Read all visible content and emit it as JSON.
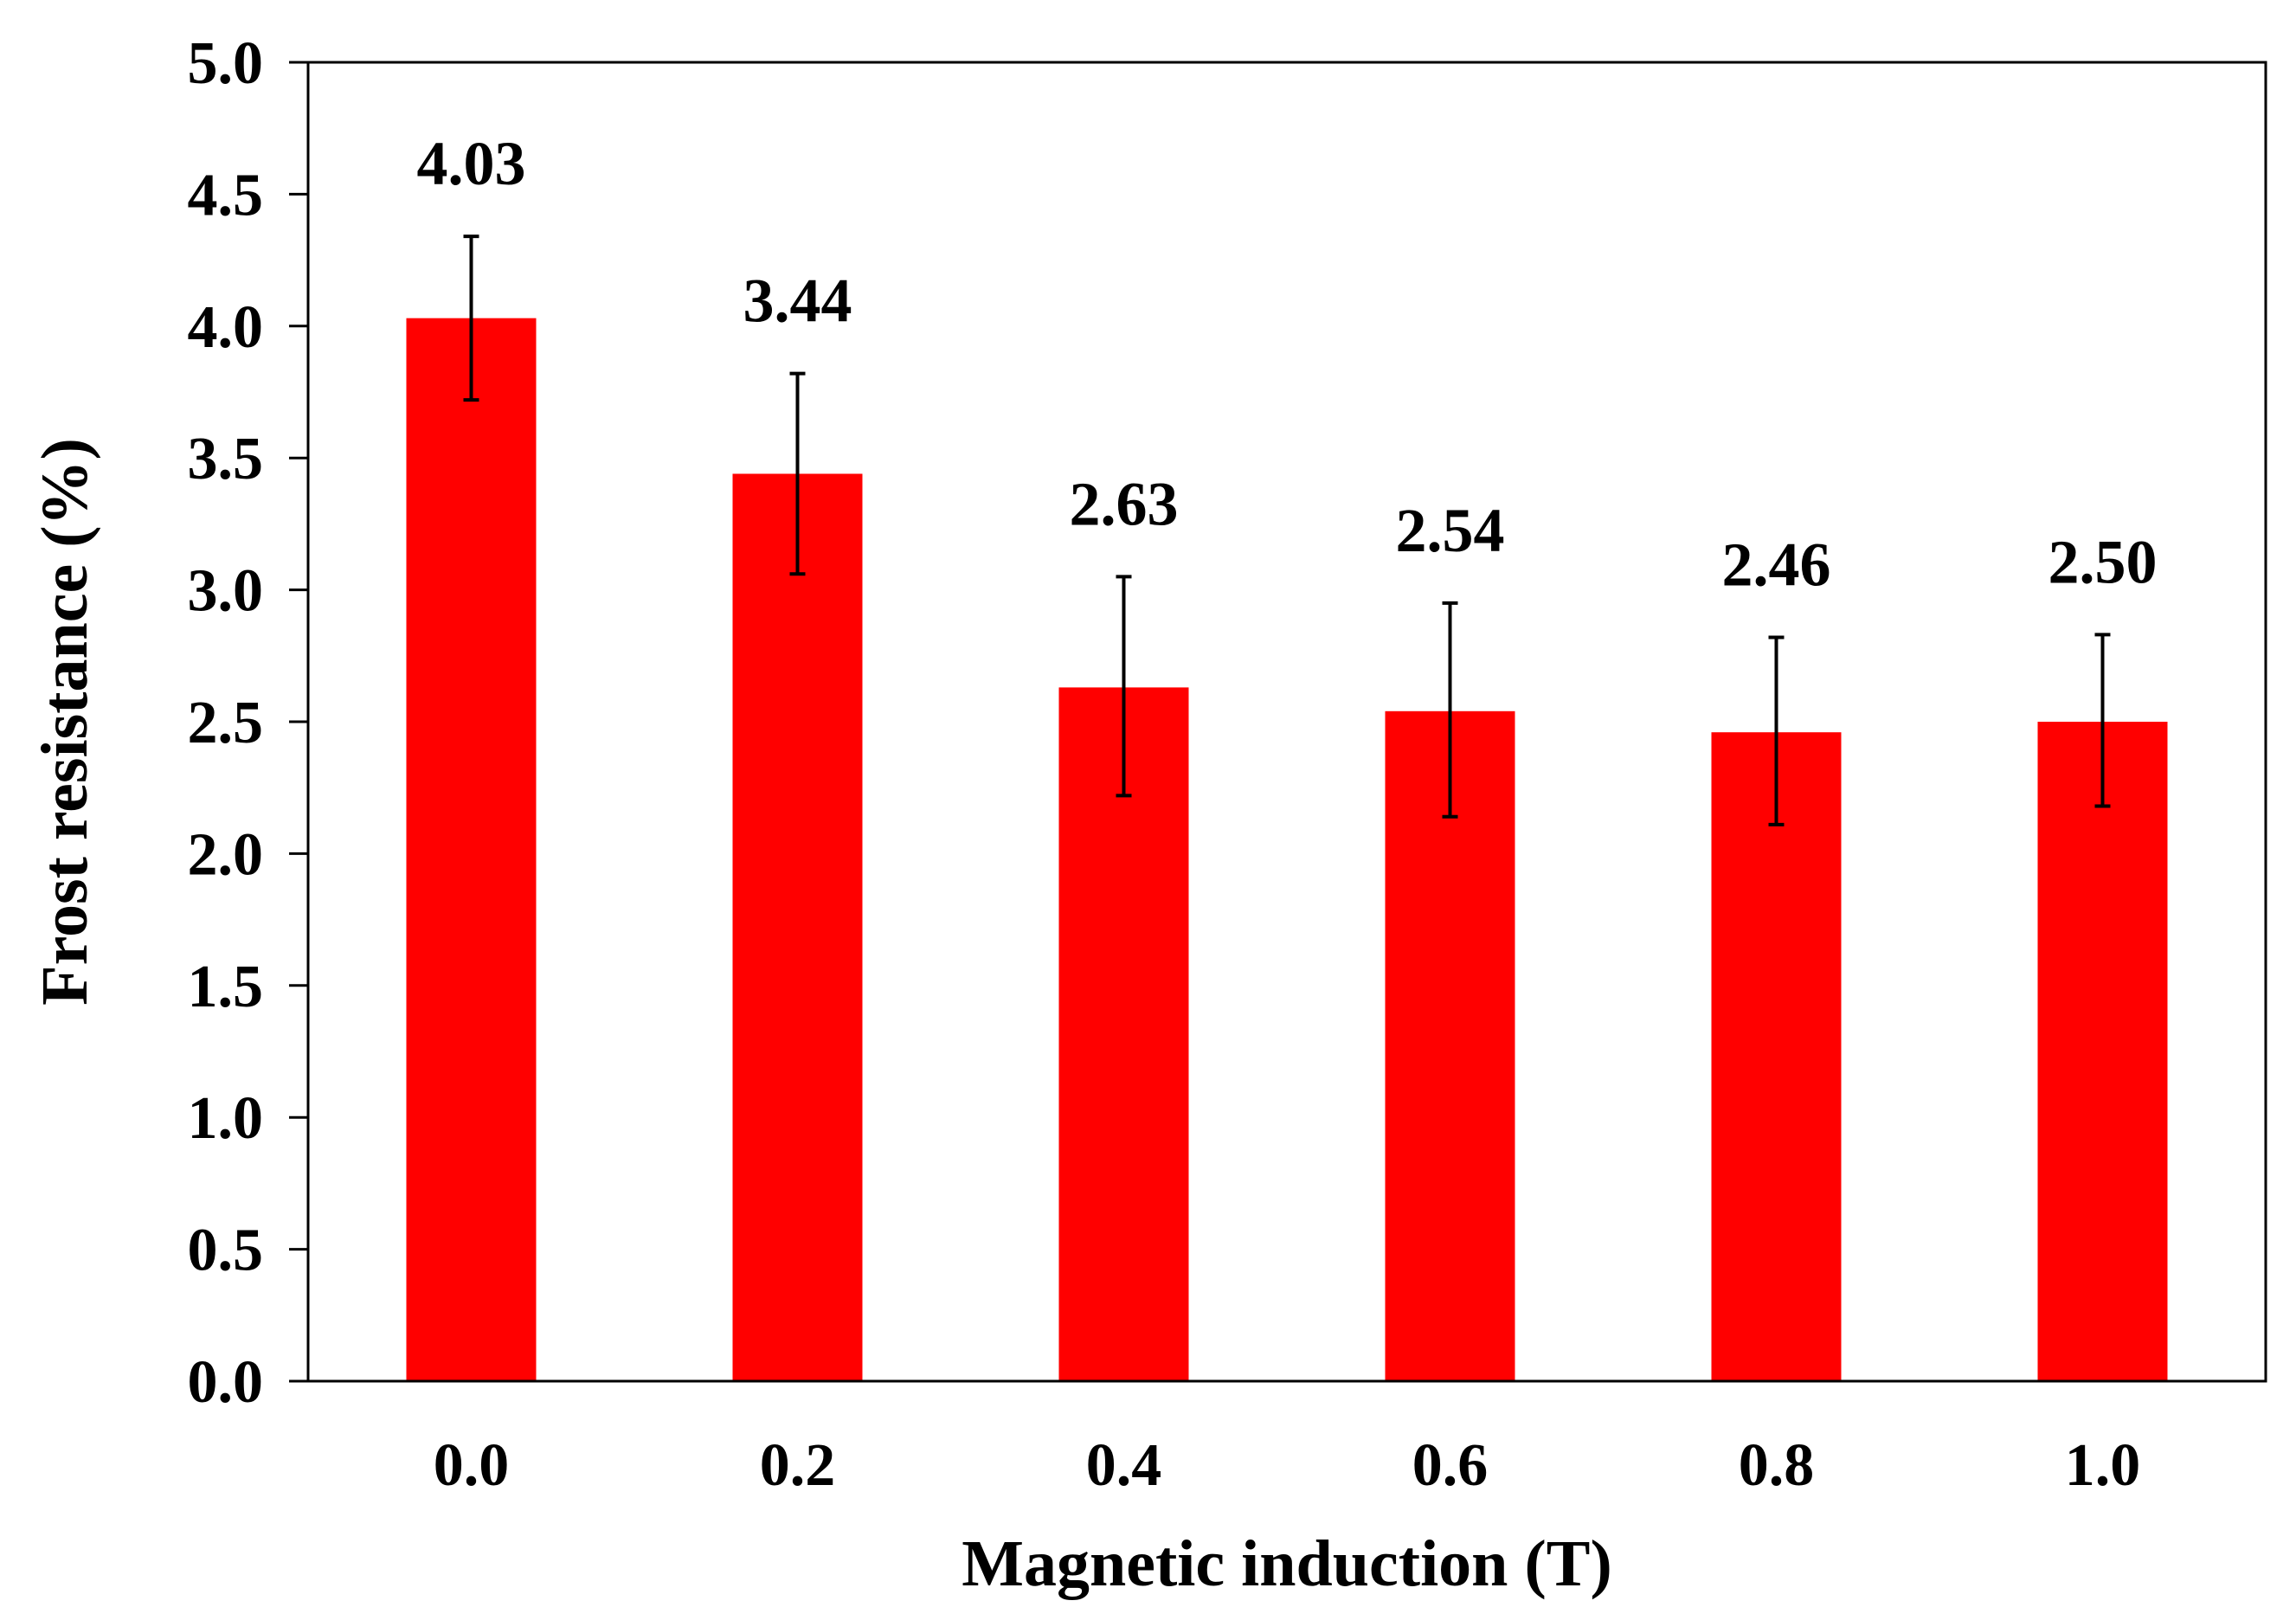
{
  "chart_data": {
    "type": "bar",
    "title": "",
    "xlabel": "Magnetic induction (T)",
    "ylabel": "Frost resistance (%)",
    "categories": [
      "0.0",
      "0.2",
      "0.4",
      "0.6",
      "0.8",
      "1.0"
    ],
    "values": [
      4.03,
      3.44,
      2.63,
      2.54,
      2.46,
      2.5
    ],
    "value_labels": [
      "4.03",
      "3.44",
      "2.63",
      "2.54",
      "2.46",
      "2.50"
    ],
    "error_upper": [
      4.34,
      3.82,
      3.05,
      2.95,
      2.82,
      2.83
    ],
    "error_lower": [
      3.72,
      3.06,
      2.22,
      2.14,
      2.11,
      2.18
    ],
    "ylim": [
      0,
      5
    ],
    "yticks": [
      "0.0",
      "0.5",
      "1.0",
      "1.5",
      "2.0",
      "2.5",
      "3.0",
      "3.5",
      "4.0",
      "4.5",
      "5.0"
    ],
    "grid": false,
    "legend": "none",
    "bar_color": "#FF0000",
    "axis_color": "#000000"
  }
}
